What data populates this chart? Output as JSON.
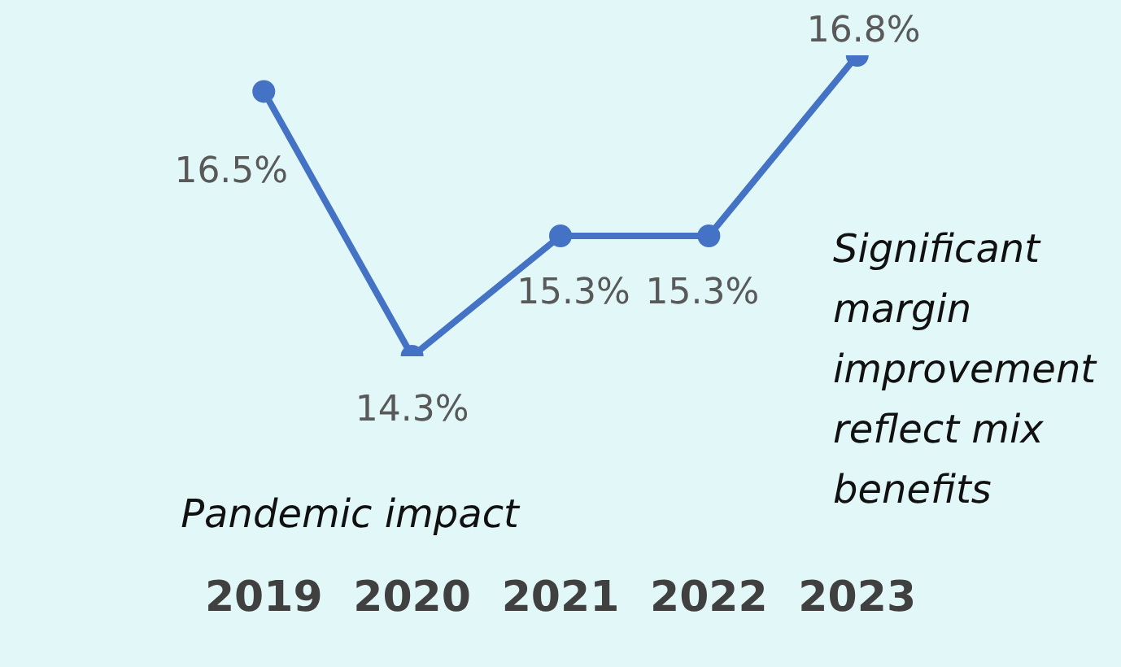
{
  "chart_data": {
    "type": "line",
    "categories": [
      "2019",
      "2020",
      "2021",
      "2022",
      "2023"
    ],
    "series": [
      {
        "color": "#4472c4",
        "values": [
          16.5,
          14.3,
          15.3,
          15.3,
          16.8
        ],
        "value_labels": [
          "16.5%",
          "14.3%",
          "15.3%",
          "15.3%",
          "16.8%"
        ]
      }
    ],
    "annotations": [
      "Pandemic impact",
      "Significant margin improvement reflect mix benefits"
    ],
    "marker": "circle",
    "line_style": "solid",
    "grid": false,
    "legend": false,
    "tick_labels": "x"
  }
}
